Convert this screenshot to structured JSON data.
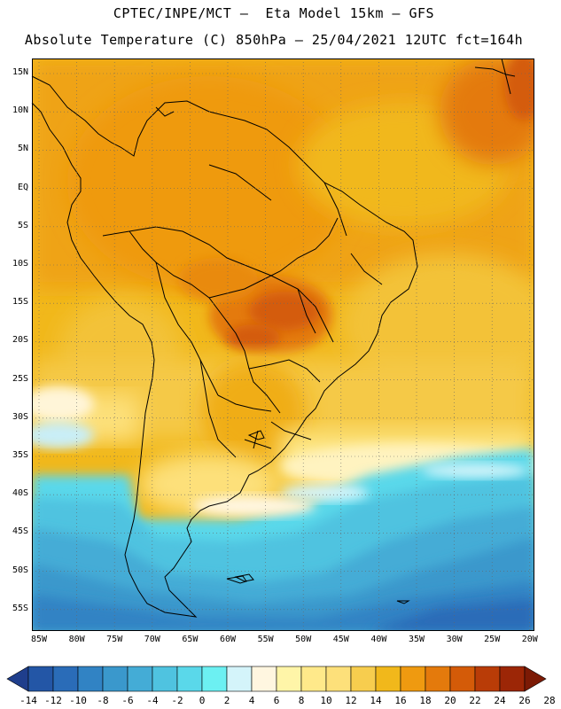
{
  "header": {
    "line1": "CPTEC/INPE/MCT —  Eta Model 15km — GFS",
    "line2": "Absolute Temperature (C) 850hPa — 25/04/2021 12UTC fct=164h"
  },
  "map": {
    "lat_labels": [
      "15N",
      "10N",
      "5N",
      "EQ",
      "5S",
      "10S",
      "15S",
      "20S",
      "25S",
      "30S",
      "35S",
      "40S",
      "45S",
      "50S",
      "55S"
    ],
    "lon_labels": [
      "85W",
      "80W",
      "75W",
      "70W",
      "65W",
      "60W",
      "55W",
      "50W",
      "45W",
      "40W",
      "35W",
      "30W",
      "25W",
      "20W"
    ]
  },
  "colorbar": {
    "labels": [
      "-14",
      "-12",
      "-10",
      "-8",
      "-6",
      "-4",
      "-2",
      "0",
      "2",
      "4",
      "6",
      "8",
      "10",
      "12",
      "14",
      "16",
      "18",
      "20",
      "22",
      "24",
      "26",
      "28"
    ],
    "colors": [
      "#1f3e8c",
      "#2356a6",
      "#2a6cb8",
      "#3183c4",
      "#3a98cc",
      "#44acd6",
      "#4fc3e0",
      "#5ad8ea",
      "#6cf0f2",
      "#d4f4fa",
      "#fff6e0",
      "#fff5a8",
      "#ffe98a",
      "#fde07a",
      "#f7cd4e",
      "#f1b81b",
      "#ef9a10",
      "#e47a0c",
      "#d45b08",
      "#b93c07",
      "#9c2606",
      "#7c1a05"
    ]
  }
}
